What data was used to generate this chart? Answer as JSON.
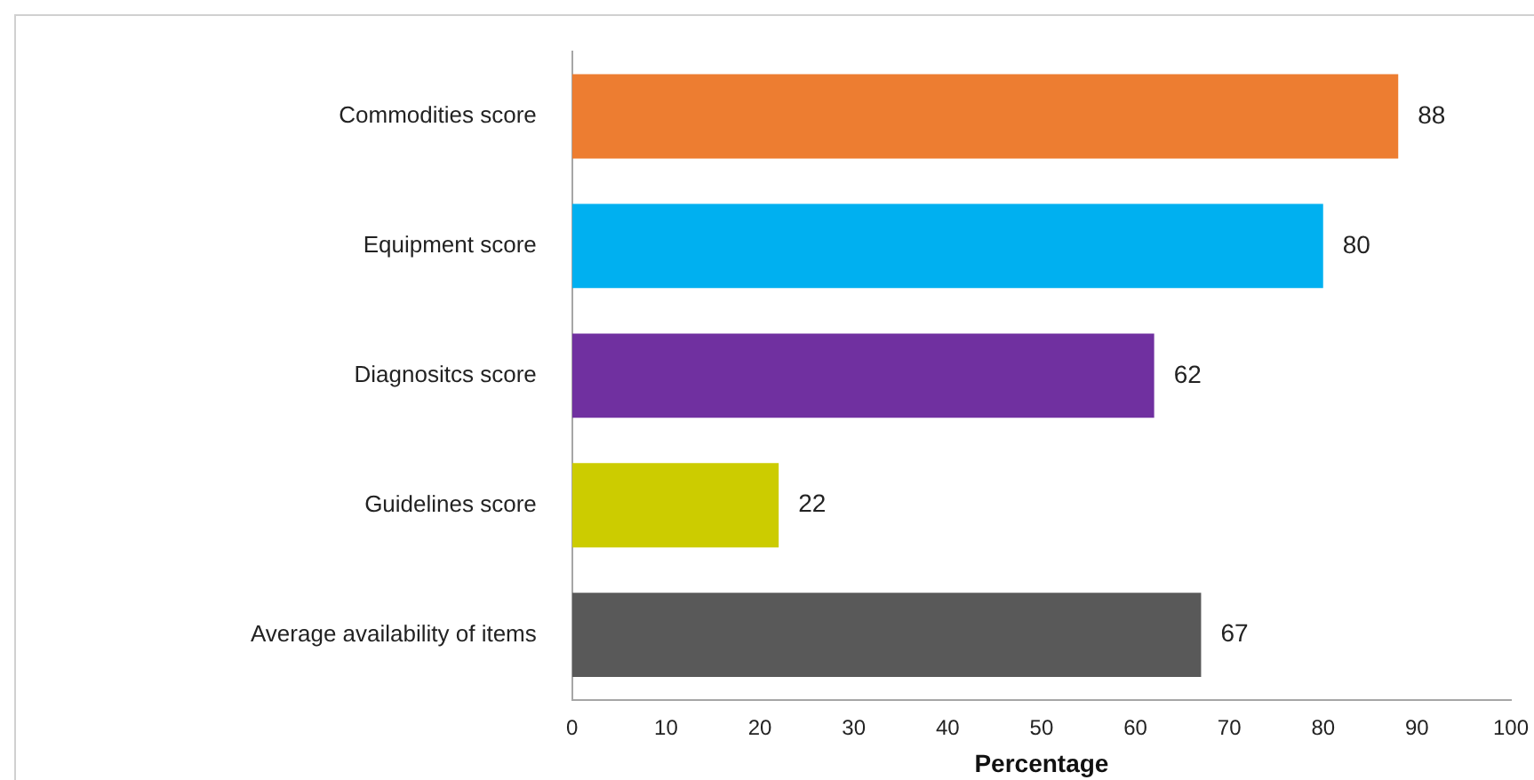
{
  "chart_data": {
    "type": "bar",
    "orientation": "horizontal",
    "xlabel": "Percentage",
    "categories": [
      "Commodities score",
      "Equipment score",
      "Diagnositcs score",
      "Guidelines score",
      "Average availability of items"
    ],
    "values": [
      88,
      80,
      62,
      22,
      67
    ],
    "colors": [
      "#ed7d31",
      "#00b0f0",
      "#7030a0",
      "#cccc00",
      "#595959"
    ],
    "xlim": [
      0,
      100
    ],
    "xticks": [
      0,
      10,
      20,
      30,
      40,
      50,
      60,
      70,
      80,
      90,
      100
    ],
    "data_labels": true,
    "grid": false,
    "legend": false
  }
}
